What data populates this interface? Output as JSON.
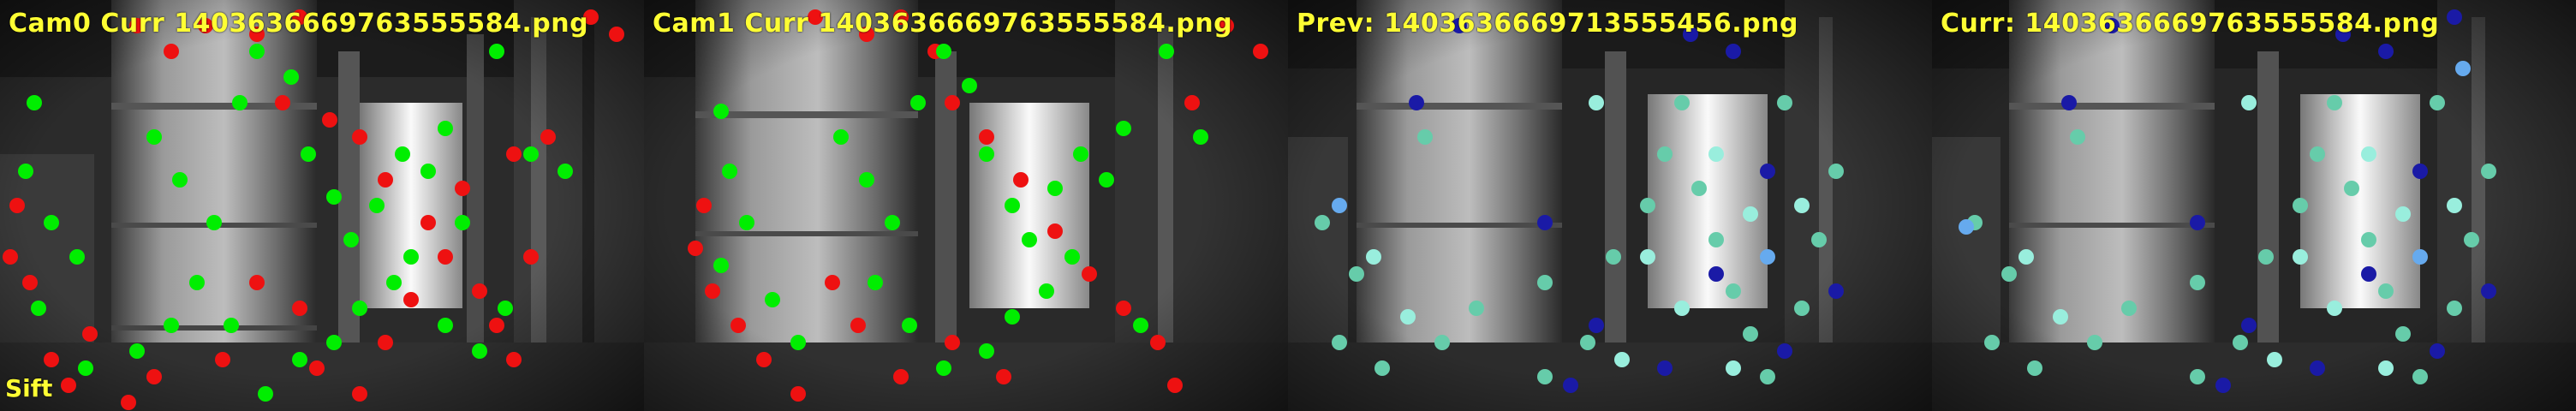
{
  "panels": [
    {
      "title": "Cam0 Curr 1403636669763555584.png",
      "footer": "Sift",
      "palette": "stereo"
    },
    {
      "title": "Cam1 Curr 1403636669763555584.png",
      "footer": "",
      "palette": "stereo"
    },
    {
      "title": "Prev: 1403636669713555456.png",
      "footer": "",
      "palette": "track"
    },
    {
      "title": "Curr: 1403636669763555584.png",
      "footer": "",
      "palette": "track"
    }
  ],
  "colors": {
    "title_text": "#ffff33",
    "keypoint_green": "#00ee00",
    "keypoint_red": "#ee1111",
    "track_teal": "#66ccaa",
    "track_cyan": "#99eedd",
    "track_navy": "#1a1aa6",
    "track_lightblue": "#66aaee"
  }
}
